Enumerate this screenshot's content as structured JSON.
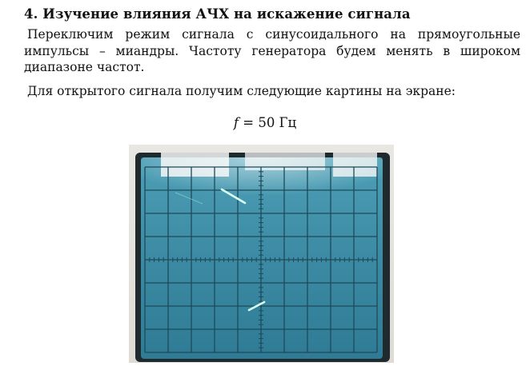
{
  "heading": "4. Изучение влияния АЧХ на искажение сигнала",
  "paragraph1": "Переключим режим сигнала с синусоидального на прямоугольные импульсы – миандры. Частоту генератора будем менять в широком диапазоне частот.",
  "paragraph2": "Для открытого сигнала получим следующие картины на экране:",
  "formula": {
    "variable": "f",
    "rest": " = 50 Гц"
  },
  "oscilloscope": {
    "screen_color": "#3f8fa8",
    "trace_color": "#d8fff4",
    "grid_color": "#1d4a5a",
    "columns": 10,
    "rows": 8
  }
}
